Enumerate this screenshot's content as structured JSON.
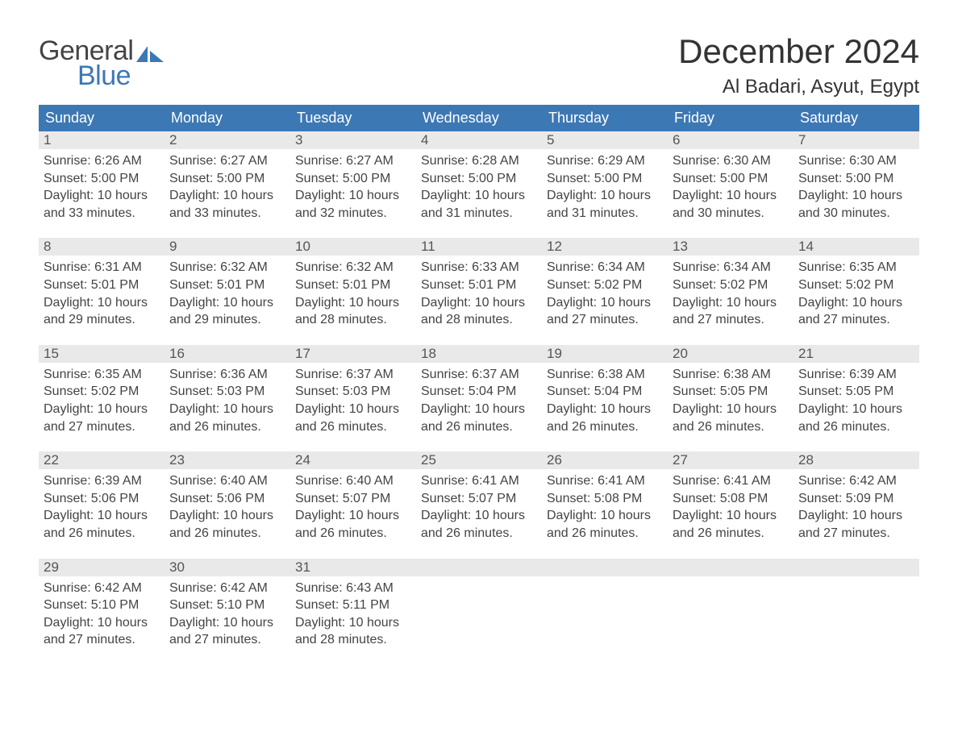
{
  "logo": {
    "text_general": "General",
    "text_blue": "Blue",
    "sail_color": "#3c78b4"
  },
  "header": {
    "month_title": "December 2024",
    "location": "Al Badari, Asyut, Egypt"
  },
  "styles": {
    "header_bg": "#3c78b4",
    "header_text": "#ffffff",
    "daybar_bg": "#e9e9e9",
    "cell_border_top": "#3c78b4",
    "body_text": "#444444",
    "title_text": "#333333",
    "body_bg": "#ffffff",
    "header_fontsize": 18,
    "daynum_fontsize": 17,
    "body_fontsize": 16,
    "title_fontsize": 42,
    "location_fontsize": 24
  },
  "columns": [
    "Sunday",
    "Monday",
    "Tuesday",
    "Wednesday",
    "Thursday",
    "Friday",
    "Saturday"
  ],
  "weeks": [
    [
      {
        "day": "1",
        "sunrise": "Sunrise: 6:26 AM",
        "sunset": "Sunset: 5:00 PM",
        "daylight": "Daylight: 10 hours and 33 minutes."
      },
      {
        "day": "2",
        "sunrise": "Sunrise: 6:27 AM",
        "sunset": "Sunset: 5:00 PM",
        "daylight": "Daylight: 10 hours and 33 minutes."
      },
      {
        "day": "3",
        "sunrise": "Sunrise: 6:27 AM",
        "sunset": "Sunset: 5:00 PM",
        "daylight": "Daylight: 10 hours and 32 minutes."
      },
      {
        "day": "4",
        "sunrise": "Sunrise: 6:28 AM",
        "sunset": "Sunset: 5:00 PM",
        "daylight": "Daylight: 10 hours and 31 minutes."
      },
      {
        "day": "5",
        "sunrise": "Sunrise: 6:29 AM",
        "sunset": "Sunset: 5:00 PM",
        "daylight": "Daylight: 10 hours and 31 minutes."
      },
      {
        "day": "6",
        "sunrise": "Sunrise: 6:30 AM",
        "sunset": "Sunset: 5:00 PM",
        "daylight": "Daylight: 10 hours and 30 minutes."
      },
      {
        "day": "7",
        "sunrise": "Sunrise: 6:30 AM",
        "sunset": "Sunset: 5:00 PM",
        "daylight": "Daylight: 10 hours and 30 minutes."
      }
    ],
    [
      {
        "day": "8",
        "sunrise": "Sunrise: 6:31 AM",
        "sunset": "Sunset: 5:01 PM",
        "daylight": "Daylight: 10 hours and 29 minutes."
      },
      {
        "day": "9",
        "sunrise": "Sunrise: 6:32 AM",
        "sunset": "Sunset: 5:01 PM",
        "daylight": "Daylight: 10 hours and 29 minutes."
      },
      {
        "day": "10",
        "sunrise": "Sunrise: 6:32 AM",
        "sunset": "Sunset: 5:01 PM",
        "daylight": "Daylight: 10 hours and 28 minutes."
      },
      {
        "day": "11",
        "sunrise": "Sunrise: 6:33 AM",
        "sunset": "Sunset: 5:01 PM",
        "daylight": "Daylight: 10 hours and 28 minutes."
      },
      {
        "day": "12",
        "sunrise": "Sunrise: 6:34 AM",
        "sunset": "Sunset: 5:02 PM",
        "daylight": "Daylight: 10 hours and 27 minutes."
      },
      {
        "day": "13",
        "sunrise": "Sunrise: 6:34 AM",
        "sunset": "Sunset: 5:02 PM",
        "daylight": "Daylight: 10 hours and 27 minutes."
      },
      {
        "day": "14",
        "sunrise": "Sunrise: 6:35 AM",
        "sunset": "Sunset: 5:02 PM",
        "daylight": "Daylight: 10 hours and 27 minutes."
      }
    ],
    [
      {
        "day": "15",
        "sunrise": "Sunrise: 6:35 AM",
        "sunset": "Sunset: 5:02 PM",
        "daylight": "Daylight: 10 hours and 27 minutes."
      },
      {
        "day": "16",
        "sunrise": "Sunrise: 6:36 AM",
        "sunset": "Sunset: 5:03 PM",
        "daylight": "Daylight: 10 hours and 26 minutes."
      },
      {
        "day": "17",
        "sunrise": "Sunrise: 6:37 AM",
        "sunset": "Sunset: 5:03 PM",
        "daylight": "Daylight: 10 hours and 26 minutes."
      },
      {
        "day": "18",
        "sunrise": "Sunrise: 6:37 AM",
        "sunset": "Sunset: 5:04 PM",
        "daylight": "Daylight: 10 hours and 26 minutes."
      },
      {
        "day": "19",
        "sunrise": "Sunrise: 6:38 AM",
        "sunset": "Sunset: 5:04 PM",
        "daylight": "Daylight: 10 hours and 26 minutes."
      },
      {
        "day": "20",
        "sunrise": "Sunrise: 6:38 AM",
        "sunset": "Sunset: 5:05 PM",
        "daylight": "Daylight: 10 hours and 26 minutes."
      },
      {
        "day": "21",
        "sunrise": "Sunrise: 6:39 AM",
        "sunset": "Sunset: 5:05 PM",
        "daylight": "Daylight: 10 hours and 26 minutes."
      }
    ],
    [
      {
        "day": "22",
        "sunrise": "Sunrise: 6:39 AM",
        "sunset": "Sunset: 5:06 PM",
        "daylight": "Daylight: 10 hours and 26 minutes."
      },
      {
        "day": "23",
        "sunrise": "Sunrise: 6:40 AM",
        "sunset": "Sunset: 5:06 PM",
        "daylight": "Daylight: 10 hours and 26 minutes."
      },
      {
        "day": "24",
        "sunrise": "Sunrise: 6:40 AM",
        "sunset": "Sunset: 5:07 PM",
        "daylight": "Daylight: 10 hours and 26 minutes."
      },
      {
        "day": "25",
        "sunrise": "Sunrise: 6:41 AM",
        "sunset": "Sunset: 5:07 PM",
        "daylight": "Daylight: 10 hours and 26 minutes."
      },
      {
        "day": "26",
        "sunrise": "Sunrise: 6:41 AM",
        "sunset": "Sunset: 5:08 PM",
        "daylight": "Daylight: 10 hours and 26 minutes."
      },
      {
        "day": "27",
        "sunrise": "Sunrise: 6:41 AM",
        "sunset": "Sunset: 5:08 PM",
        "daylight": "Daylight: 10 hours and 26 minutes."
      },
      {
        "day": "28",
        "sunrise": "Sunrise: 6:42 AM",
        "sunset": "Sunset: 5:09 PM",
        "daylight": "Daylight: 10 hours and 27 minutes."
      }
    ],
    [
      {
        "day": "29",
        "sunrise": "Sunrise: 6:42 AM",
        "sunset": "Sunset: 5:10 PM",
        "daylight": "Daylight: 10 hours and 27 minutes."
      },
      {
        "day": "30",
        "sunrise": "Sunrise: 6:42 AM",
        "sunset": "Sunset: 5:10 PM",
        "daylight": "Daylight: 10 hours and 27 minutes."
      },
      {
        "day": "31",
        "sunrise": "Sunrise: 6:43 AM",
        "sunset": "Sunset: 5:11 PM",
        "daylight": "Daylight: 10 hours and 28 minutes."
      },
      null,
      null,
      null,
      null
    ]
  ]
}
